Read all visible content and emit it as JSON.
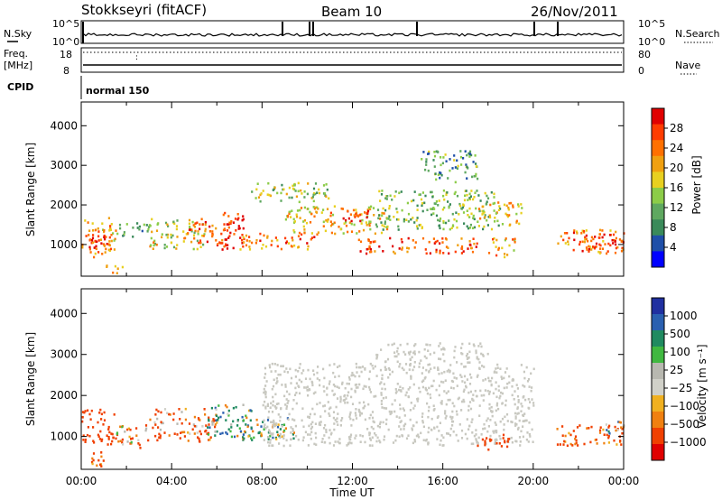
{
  "header": {
    "station": "Stokkseyri (fitACF)",
    "beam": "Beam 10",
    "date": "26/Nov/2011"
  },
  "top_panels": {
    "nsky_label": "N.Sky",
    "nsky_ticks": [
      "10^5",
      "10^0"
    ],
    "nsearch_label": "N.Search",
    "nsearch_ticks": [
      "10^5",
      "10^0"
    ],
    "freq_label": "Freq.",
    "freq_unit": "[MHz]",
    "freq_ticks": [
      "18",
      "8"
    ],
    "nave_label": "Nave",
    "nave_ticks": [
      "80",
      "0"
    ],
    "cpid_label": "CPID",
    "cpid_value": "normal 150"
  },
  "colors": {
    "power_scale": [
      "#0000ff",
      "#1f4fa8",
      "#3a8a5a",
      "#5fa860",
      "#8ccc48",
      "#e8d020",
      "#f0a010",
      "#ff7000",
      "#ff3c00",
      "#e00000"
    ],
    "velocity_scale": [
      "#2030a0",
      "#2a60b0",
      "#208a60",
      "#40b840",
      "#b8b8b0",
      "#d0d0c8",
      "#f0b020",
      "#f08010",
      "#f04000",
      "#e00000"
    ],
    "ground_scatter": "#c8c8c0"
  },
  "chart_data": [
    {
      "type": "heatmap",
      "name": "power",
      "xlabel": "",
      "ylabel": "Slant Range [km]",
      "x_ticks": [
        "00:00",
        "04:00",
        "08:00",
        "12:00",
        "16:00",
        "20:00",
        "00:00"
      ],
      "x_range_hours": [
        0,
        24
      ],
      "y_ticks": [
        1000,
        2000,
        3000,
        4000
      ],
      "y_range_km": [
        200,
        4600
      ],
      "colorbar": {
        "label": "Power [dB]",
        "ticks": [
          4,
          8,
          12,
          16,
          20,
          24,
          28
        ],
        "range": [
          0,
          30
        ]
      },
      "echo_regions": [
        {
          "t": [
            0.0,
            1.5
          ],
          "r": [
            700,
            1700
          ],
          "v": 20
        },
        {
          "t": [
            0.2,
            1.3
          ],
          "r": [
            900,
            1400
          ],
          "v": 27
        },
        {
          "t": [
            0.8,
            1.8
          ],
          "r": [
            300,
            500
          ],
          "v": 18
        },
        {
          "t": [
            1.5,
            3.0
          ],
          "r": [
            1200,
            1600
          ],
          "v": 10
        },
        {
          "t": [
            3.0,
            5.5
          ],
          "r": [
            900,
            1700
          ],
          "v": 16
        },
        {
          "t": [
            4.5,
            6.5
          ],
          "r": [
            1000,
            1600
          ],
          "v": 24
        },
        {
          "t": [
            6.2,
            7.2
          ],
          "r": [
            900,
            1900
          ],
          "v": 28
        },
        {
          "t": [
            7.0,
            10.5
          ],
          "r": [
            900,
            1300
          ],
          "v": 22
        },
        {
          "t": [
            7.5,
            11.0
          ],
          "r": [
            2100,
            2600
          ],
          "v": 14
        },
        {
          "t": [
            9.0,
            13.5
          ],
          "r": [
            1300,
            2000
          ],
          "v": 18
        },
        {
          "t": [
            11.0,
            13.0
          ],
          "r": [
            1600,
            1900
          ],
          "v": 26
        },
        {
          "t": [
            12.0,
            17.5
          ],
          "r": [
            800,
            1200
          ],
          "v": 25
        },
        {
          "t": [
            13.0,
            18.5
          ],
          "r": [
            1400,
            2400
          ],
          "v": 12
        },
        {
          "t": [
            15.0,
            17.5
          ],
          "r": [
            2600,
            3400
          ],
          "v": 10
        },
        {
          "t": [
            17.5,
            19.5
          ],
          "r": [
            1500,
            2100
          ],
          "v": 18
        },
        {
          "t": [
            18.0,
            19.2
          ],
          "r": [
            700,
            1200
          ],
          "v": 20
        },
        {
          "t": [
            21.0,
            24.0
          ],
          "r": [
            800,
            1400
          ],
          "v": 22
        },
        {
          "t": [
            22.0,
            24.0
          ],
          "r": [
            900,
            1300
          ],
          "v": 27
        }
      ]
    },
    {
      "type": "heatmap",
      "name": "velocity",
      "xlabel": "Time UT",
      "ylabel": "Slant Range [km]",
      "x_ticks": [
        "00:00",
        "04:00",
        "08:00",
        "12:00",
        "16:00",
        "20:00",
        "00:00"
      ],
      "x_range_hours": [
        0,
        24
      ],
      "y_ticks": [
        1000,
        2000,
        3000,
        4000
      ],
      "y_range_km": [
        200,
        4600
      ],
      "colorbar": {
        "label": "Velocity [m s⁻¹]",
        "ticks": [
          "1000",
          "500",
          "100",
          "25",
          "−25",
          "−100",
          "−500",
          "−1000"
        ]
      },
      "echo_regions": [
        {
          "t": [
            0.0,
            1.5
          ],
          "r": [
            800,
            1700
          ],
          "v": -300
        },
        {
          "t": [
            0.3,
            1.2
          ],
          "r": [
            300,
            700
          ],
          "v": -200
        },
        {
          "t": [
            1.5,
            3.0
          ],
          "r": [
            700,
            1300
          ],
          "v": -100
        },
        {
          "t": [
            3.0,
            6.0
          ],
          "r": [
            900,
            1700
          ],
          "v": -150
        },
        {
          "t": [
            5.5,
            7.5
          ],
          "r": [
            1000,
            1800
          ],
          "v": 150
        },
        {
          "t": [
            7.0,
            9.5
          ],
          "r": [
            900,
            1500
          ],
          "v": 100
        },
        {
          "t": [
            8.0,
            20.0
          ],
          "r": [
            800,
            2800
          ],
          "v": 0,
          "ground": true
        },
        {
          "t": [
            13.0,
            18.0
          ],
          "r": [
            2800,
            3300
          ],
          "v": 0,
          "ground": true
        },
        {
          "t": [
            17.5,
            19.0
          ],
          "r": [
            700,
            1100
          ],
          "v": -300
        },
        {
          "t": [
            21.0,
            24.0
          ],
          "r": [
            800,
            1300
          ],
          "v": -200
        },
        {
          "t": [
            23.0,
            24.0
          ],
          "r": [
            1100,
            1400
          ],
          "v": 150
        }
      ]
    }
  ]
}
